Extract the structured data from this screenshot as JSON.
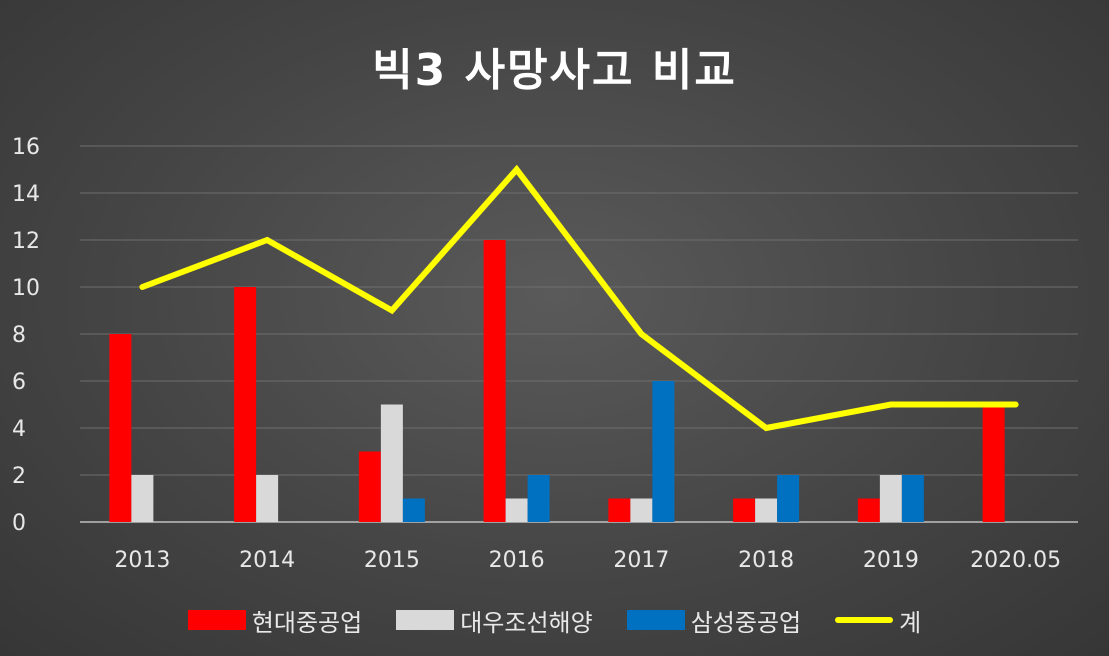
{
  "chart_data": {
    "type": "bar",
    "title": "빅3 사망사고 비교",
    "categories": [
      "2013",
      "2014",
      "2015",
      "2016",
      "2017",
      "2018",
      "2019",
      "2020.05"
    ],
    "ylim": [
      0,
      16
    ],
    "yticks": [
      0,
      2,
      4,
      6,
      8,
      10,
      12,
      14,
      16
    ],
    "grid": true,
    "legend_position": "bottom",
    "series": [
      {
        "name": "현대중공업",
        "type": "bar",
        "color": "#ff0000",
        "values": [
          8,
          10,
          3,
          12,
          1,
          1,
          1,
          5
        ]
      },
      {
        "name": "대우조선해양",
        "type": "bar",
        "color": "#d9d9d9",
        "values": [
          2,
          2,
          5,
          1,
          1,
          1,
          2,
          0
        ]
      },
      {
        "name": "삼성중공업",
        "type": "bar",
        "color": "#0070c0",
        "values": [
          0,
          0,
          1,
          2,
          6,
          2,
          2,
          0
        ]
      },
      {
        "name": "계",
        "type": "line",
        "color": "#ffff00",
        "values": [
          10,
          12,
          9,
          15,
          8,
          4,
          5,
          5
        ]
      }
    ]
  }
}
